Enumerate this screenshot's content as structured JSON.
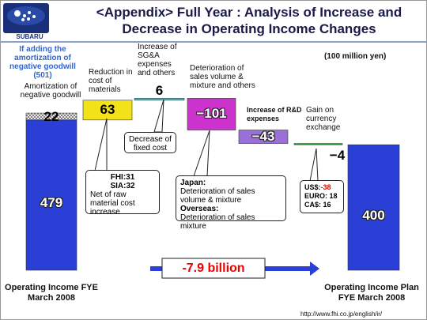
{
  "chart_data": {
    "type": "waterfall",
    "logo": "SUBARU",
    "title": "<Appendix> Full Year : Analysis of Increase and Decrease in Operating Income Changes",
    "unit": "(100 million yen)",
    "categories": [
      "Operating Income FYE March 2008",
      "Reduction in cost of materials",
      "Increase of SG&A expenses and others",
      "Deterioration of sales volume & mixture and others",
      "Increase of R&D expenses",
      "Gain on currency exchange",
      "Operating Income Plan FYE March 2008"
    ],
    "measures": [
      "total",
      "relative",
      "relative",
      "relative",
      "relative",
      "relative",
      "total"
    ],
    "values": [
      479,
      63,
      6,
      -101,
      -43,
      -4,
      400
    ],
    "value_labels": [
      "479",
      "63",
      "6",
      "−101",
      "−43",
      "−4",
      "400"
    ],
    "colors": [
      "#2a3fd6",
      "#f2e21a",
      "#3cc8c8",
      "#cc33cc",
      "#9a70d8",
      "#2f9a3a",
      "#2a3fd6"
    ],
    "goodwill": {
      "label": "Amortization of negative goodwill",
      "value": 22,
      "note": "If adding the amortization of negative goodwill (501)"
    },
    "annotations": {
      "fixed_cost": "Decrease of fixed cost",
      "materials": [
        "FHI:31",
        "SIA:32",
        "Net of raw material cost increase"
      ],
      "sales": [
        "Japan:",
        "Deterioration of sales volume & mixture",
        "Overseas:",
        "Deterioration of sales mixture"
      ],
      "currency": [
        "US$:",
        "-38",
        "EURO: 18",
        "CA$: 16"
      ],
      "summary": "-7.9 billion"
    },
    "source": "http://www.fhi.co.jp/english/ir/"
  }
}
